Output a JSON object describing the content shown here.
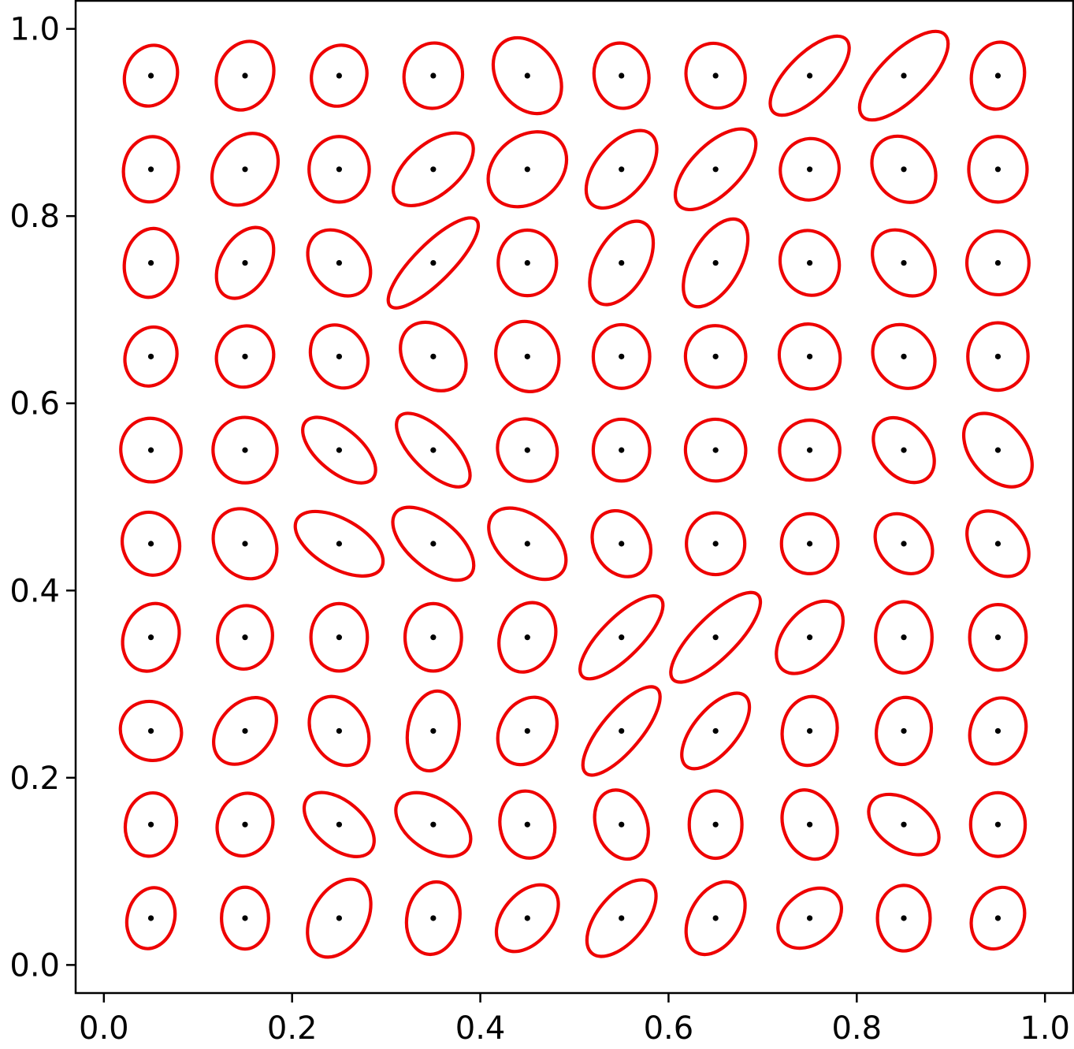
{
  "chart_data": {
    "type": "scatter",
    "title": "",
    "xlabel": "",
    "ylabel": "",
    "xlim": [
      -0.03,
      1.03
    ],
    "ylim": [
      -0.03,
      1.03
    ],
    "grid": false,
    "legend": "none",
    "x_ticks": [
      0.0,
      0.2,
      0.4,
      0.6,
      0.8,
      1.0
    ],
    "x_tick_labels": [
      "0.0",
      "0.2",
      "0.4",
      "0.6",
      "0.8",
      "1.0"
    ],
    "y_ticks": [
      0.0,
      0.2,
      0.4,
      0.6,
      0.8,
      1.0
    ],
    "y_tick_labels": [
      "0.0",
      "0.2",
      "0.4",
      "0.6",
      "0.8",
      "1.0"
    ],
    "marker_color": "#000000",
    "ellipse_color": "#ee0000",
    "points": {
      "x": [
        0.05,
        0.15,
        0.25,
        0.35,
        0.45,
        0.55,
        0.65,
        0.75,
        0.85,
        0.95
      ],
      "y": [
        0.95,
        0.85,
        0.75,
        0.65,
        0.55,
        0.45,
        0.35,
        0.25,
        0.15,
        0.05
      ]
    },
    "ellipses_note": "width/height in data units, angle in degrees (counter-clockwise)",
    "ellipses": [
      [
        [
          0.055,
          0.066,
          -20
        ],
        [
          0.059,
          0.075,
          -20
        ],
        [
          0.058,
          0.066,
          -20
        ],
        [
          0.062,
          0.07,
          -10
        ],
        [
          0.064,
          0.088,
          35
        ],
        [
          0.058,
          0.07,
          10
        ],
        [
          0.062,
          0.07,
          20
        ],
        [
          0.046,
          0.11,
          -45
        ],
        [
          0.05,
          0.124,
          -45
        ],
        [
          0.056,
          0.072,
          -10
        ]
      ],
      [
        [
          0.058,
          0.07,
          -10
        ],
        [
          0.064,
          0.082,
          -35
        ],
        [
          0.064,
          0.07,
          0
        ],
        [
          0.054,
          0.102,
          -50
        ],
        [
          0.07,
          0.092,
          -50
        ],
        [
          0.054,
          0.098,
          -40
        ],
        [
          0.052,
          0.11,
          -45
        ],
        [
          0.062,
          0.066,
          -20
        ],
        [
          0.062,
          0.076,
          40
        ],
        [
          0.062,
          0.07,
          0
        ]
      ],
      [
        [
          0.056,
          0.074,
          -10
        ],
        [
          0.052,
          0.082,
          -30
        ],
        [
          0.058,
          0.078,
          40
        ],
        [
          0.04,
          0.13,
          -45
        ],
        [
          0.062,
          0.07,
          0
        ],
        [
          0.054,
          0.098,
          -30
        ],
        [
          0.052,
          0.104,
          -30
        ],
        [
          0.062,
          0.07,
          20
        ],
        [
          0.058,
          0.078,
          40
        ],
        [
          0.066,
          0.068,
          0
        ]
      ],
      [
        [
          0.054,
          0.064,
          -20
        ],
        [
          0.06,
          0.066,
          -20
        ],
        [
          0.058,
          0.07,
          30
        ],
        [
          0.062,
          0.08,
          40
        ],
        [
          0.066,
          0.076,
          20
        ],
        [
          0.06,
          0.068,
          0
        ],
        [
          0.064,
          0.066,
          10
        ],
        [
          0.064,
          0.07,
          20
        ],
        [
          0.062,
          0.072,
          40
        ],
        [
          0.064,
          0.072,
          0
        ]
      ],
      [
        [
          0.064,
          0.068,
          10
        ],
        [
          0.068,
          0.07,
          10
        ],
        [
          0.046,
          0.094,
          50
        ],
        [
          0.044,
          0.102,
          45
        ],
        [
          0.062,
          0.068,
          30
        ],
        [
          0.06,
          0.066,
          0
        ],
        [
          0.064,
          0.066,
          10
        ],
        [
          0.064,
          0.064,
          0
        ],
        [
          0.054,
          0.078,
          40
        ],
        [
          0.058,
          0.09,
          40
        ]
      ],
      [
        [
          0.06,
          0.068,
          20
        ],
        [
          0.064,
          0.078,
          30
        ],
        [
          0.052,
          0.104,
          60
        ],
        [
          0.052,
          0.104,
          50
        ],
        [
          0.058,
          0.096,
          50
        ],
        [
          0.058,
          0.074,
          30
        ],
        [
          0.062,
          0.066,
          0
        ],
        [
          0.06,
          0.064,
          0
        ],
        [
          0.054,
          0.07,
          40
        ],
        [
          0.056,
          0.078,
          40
        ]
      ],
      [
        [
          0.058,
          0.074,
          -20
        ],
        [
          0.058,
          0.068,
          -10
        ],
        [
          0.06,
          0.072,
          0
        ],
        [
          0.06,
          0.072,
          0
        ],
        [
          0.058,
          0.076,
          -20
        ],
        [
          0.042,
          0.118,
          -45
        ],
        [
          0.044,
          0.128,
          -45
        ],
        [
          0.054,
          0.09,
          -40
        ],
        [
          0.06,
          0.076,
          0
        ],
        [
          0.06,
          0.07,
          0
        ]
      ],
      [
        [
          0.066,
          0.062,
          -30
        ],
        [
          0.056,
          0.08,
          -40
        ],
        [
          0.058,
          0.078,
          30
        ],
        [
          0.054,
          0.086,
          -10
        ],
        [
          0.058,
          0.076,
          -30
        ],
        [
          0.042,
          0.118,
          -40
        ],
        [
          0.046,
          0.098,
          -40
        ],
        [
          0.058,
          0.074,
          -10
        ],
        [
          0.058,
          0.072,
          -10
        ],
        [
          0.058,
          0.072,
          -20
        ]
      ],
      [
        [
          0.054,
          0.068,
          -10
        ],
        [
          0.058,
          0.068,
          -20
        ],
        [
          0.05,
          0.088,
          50
        ],
        [
          0.054,
          0.09,
          55
        ],
        [
          0.058,
          0.072,
          10
        ],
        [
          0.054,
          0.076,
          20
        ],
        [
          0.056,
          0.072,
          0
        ],
        [
          0.056,
          0.076,
          20
        ],
        [
          0.052,
          0.084,
          55
        ],
        [
          0.058,
          0.068,
          0
        ]
      ],
      [
        [
          0.05,
          0.066,
          -15
        ],
        [
          0.05,
          0.066,
          0
        ],
        [
          0.058,
          0.09,
          -30
        ],
        [
          0.056,
          0.078,
          -10
        ],
        [
          0.052,
          0.082,
          -40
        ],
        [
          0.05,
          0.098,
          -40
        ],
        [
          0.054,
          0.084,
          -30
        ],
        [
          0.054,
          0.076,
          -50
        ],
        [
          0.056,
          0.07,
          0
        ],
        [
          0.054,
          0.068,
          -25
        ]
      ]
    ]
  }
}
